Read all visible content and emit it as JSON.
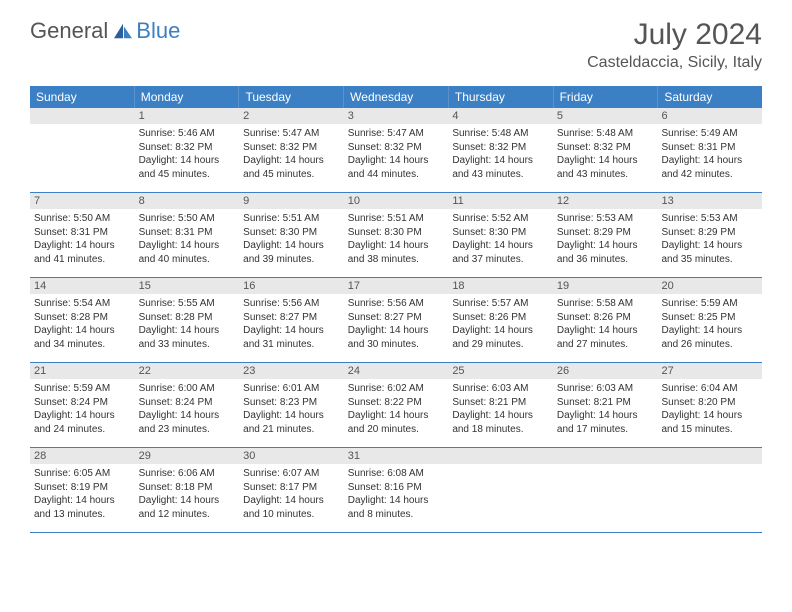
{
  "logo": {
    "general": "General",
    "blue": "Blue"
  },
  "title": "July 2024",
  "location": "Casteldaccia, Sicily, Italy",
  "colors": {
    "header_bg": "#3b7fc4",
    "daynum_bg": "#e8e8e8",
    "text": "#333333",
    "border": "#3b7fc4"
  },
  "dow": [
    "Sunday",
    "Monday",
    "Tuesday",
    "Wednesday",
    "Thursday",
    "Friday",
    "Saturday"
  ],
  "weeks": [
    [
      {
        "n": "",
        "sr": "",
        "ss": "",
        "dl": ""
      },
      {
        "n": "1",
        "sr": "Sunrise: 5:46 AM",
        "ss": "Sunset: 8:32 PM",
        "dl": "Daylight: 14 hours and 45 minutes."
      },
      {
        "n": "2",
        "sr": "Sunrise: 5:47 AM",
        "ss": "Sunset: 8:32 PM",
        "dl": "Daylight: 14 hours and 45 minutes."
      },
      {
        "n": "3",
        "sr": "Sunrise: 5:47 AM",
        "ss": "Sunset: 8:32 PM",
        "dl": "Daylight: 14 hours and 44 minutes."
      },
      {
        "n": "4",
        "sr": "Sunrise: 5:48 AM",
        "ss": "Sunset: 8:32 PM",
        "dl": "Daylight: 14 hours and 43 minutes."
      },
      {
        "n": "5",
        "sr": "Sunrise: 5:48 AM",
        "ss": "Sunset: 8:32 PM",
        "dl": "Daylight: 14 hours and 43 minutes."
      },
      {
        "n": "6",
        "sr": "Sunrise: 5:49 AM",
        "ss": "Sunset: 8:31 PM",
        "dl": "Daylight: 14 hours and 42 minutes."
      }
    ],
    [
      {
        "n": "7",
        "sr": "Sunrise: 5:50 AM",
        "ss": "Sunset: 8:31 PM",
        "dl": "Daylight: 14 hours and 41 minutes."
      },
      {
        "n": "8",
        "sr": "Sunrise: 5:50 AM",
        "ss": "Sunset: 8:31 PM",
        "dl": "Daylight: 14 hours and 40 minutes."
      },
      {
        "n": "9",
        "sr": "Sunrise: 5:51 AM",
        "ss": "Sunset: 8:30 PM",
        "dl": "Daylight: 14 hours and 39 minutes."
      },
      {
        "n": "10",
        "sr": "Sunrise: 5:51 AM",
        "ss": "Sunset: 8:30 PM",
        "dl": "Daylight: 14 hours and 38 minutes."
      },
      {
        "n": "11",
        "sr": "Sunrise: 5:52 AM",
        "ss": "Sunset: 8:30 PM",
        "dl": "Daylight: 14 hours and 37 minutes."
      },
      {
        "n": "12",
        "sr": "Sunrise: 5:53 AM",
        "ss": "Sunset: 8:29 PM",
        "dl": "Daylight: 14 hours and 36 minutes."
      },
      {
        "n": "13",
        "sr": "Sunrise: 5:53 AM",
        "ss": "Sunset: 8:29 PM",
        "dl": "Daylight: 14 hours and 35 minutes."
      }
    ],
    [
      {
        "n": "14",
        "sr": "Sunrise: 5:54 AM",
        "ss": "Sunset: 8:28 PM",
        "dl": "Daylight: 14 hours and 34 minutes."
      },
      {
        "n": "15",
        "sr": "Sunrise: 5:55 AM",
        "ss": "Sunset: 8:28 PM",
        "dl": "Daylight: 14 hours and 33 minutes."
      },
      {
        "n": "16",
        "sr": "Sunrise: 5:56 AM",
        "ss": "Sunset: 8:27 PM",
        "dl": "Daylight: 14 hours and 31 minutes."
      },
      {
        "n": "17",
        "sr": "Sunrise: 5:56 AM",
        "ss": "Sunset: 8:27 PM",
        "dl": "Daylight: 14 hours and 30 minutes."
      },
      {
        "n": "18",
        "sr": "Sunrise: 5:57 AM",
        "ss": "Sunset: 8:26 PM",
        "dl": "Daylight: 14 hours and 29 minutes."
      },
      {
        "n": "19",
        "sr": "Sunrise: 5:58 AM",
        "ss": "Sunset: 8:26 PM",
        "dl": "Daylight: 14 hours and 27 minutes."
      },
      {
        "n": "20",
        "sr": "Sunrise: 5:59 AM",
        "ss": "Sunset: 8:25 PM",
        "dl": "Daylight: 14 hours and 26 minutes."
      }
    ],
    [
      {
        "n": "21",
        "sr": "Sunrise: 5:59 AM",
        "ss": "Sunset: 8:24 PM",
        "dl": "Daylight: 14 hours and 24 minutes."
      },
      {
        "n": "22",
        "sr": "Sunrise: 6:00 AM",
        "ss": "Sunset: 8:24 PM",
        "dl": "Daylight: 14 hours and 23 minutes."
      },
      {
        "n": "23",
        "sr": "Sunrise: 6:01 AM",
        "ss": "Sunset: 8:23 PM",
        "dl": "Daylight: 14 hours and 21 minutes."
      },
      {
        "n": "24",
        "sr": "Sunrise: 6:02 AM",
        "ss": "Sunset: 8:22 PM",
        "dl": "Daylight: 14 hours and 20 minutes."
      },
      {
        "n": "25",
        "sr": "Sunrise: 6:03 AM",
        "ss": "Sunset: 8:21 PM",
        "dl": "Daylight: 14 hours and 18 minutes."
      },
      {
        "n": "26",
        "sr": "Sunrise: 6:03 AM",
        "ss": "Sunset: 8:21 PM",
        "dl": "Daylight: 14 hours and 17 minutes."
      },
      {
        "n": "27",
        "sr": "Sunrise: 6:04 AM",
        "ss": "Sunset: 8:20 PM",
        "dl": "Daylight: 14 hours and 15 minutes."
      }
    ],
    [
      {
        "n": "28",
        "sr": "Sunrise: 6:05 AM",
        "ss": "Sunset: 8:19 PM",
        "dl": "Daylight: 14 hours and 13 minutes."
      },
      {
        "n": "29",
        "sr": "Sunrise: 6:06 AM",
        "ss": "Sunset: 8:18 PM",
        "dl": "Daylight: 14 hours and 12 minutes."
      },
      {
        "n": "30",
        "sr": "Sunrise: 6:07 AM",
        "ss": "Sunset: 8:17 PM",
        "dl": "Daylight: 14 hours and 10 minutes."
      },
      {
        "n": "31",
        "sr": "Sunrise: 6:08 AM",
        "ss": "Sunset: 8:16 PM",
        "dl": "Daylight: 14 hours and 8 minutes."
      },
      {
        "n": "",
        "sr": "",
        "ss": "",
        "dl": ""
      },
      {
        "n": "",
        "sr": "",
        "ss": "",
        "dl": ""
      },
      {
        "n": "",
        "sr": "",
        "ss": "",
        "dl": ""
      }
    ]
  ]
}
